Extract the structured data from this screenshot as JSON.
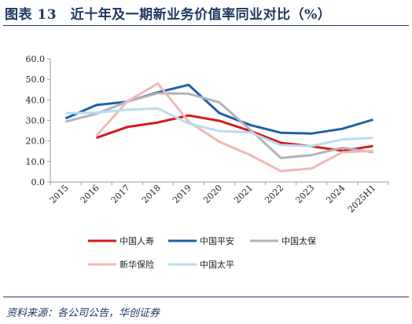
{
  "title": "图表 13　近十年及一期新业务价值率同业对比（%）",
  "source": "资料来源：各公司公告，华创证券",
  "chart_data": {
    "type": "line",
    "title": "",
    "xlabel": "",
    "ylabel": "",
    "ylim": [
      0,
      60
    ],
    "yticks": [
      "0.0",
      "10.0",
      "20.0",
      "30.0",
      "40.0",
      "50.0",
      "60.0"
    ],
    "categories": [
      "2015",
      "2016",
      "2017",
      "2018",
      "2019",
      "2020",
      "2021",
      "2022",
      "2023",
      "2024",
      "2025H1"
    ],
    "grid": false,
    "legend_position": "bottom",
    "series": [
      {
        "name": "中国人寿",
        "color": "#d7191c",
        "values": [
          null,
          21.5,
          26.8,
          29.0,
          32.4,
          29.8,
          24.9,
          19.1,
          17.4,
          15.2,
          17.5
        ]
      },
      {
        "name": "中国平安",
        "color": "#1f5fa8",
        "values": [
          31.0,
          37.5,
          39.1,
          43.7,
          47.3,
          33.6,
          27.8,
          24.0,
          23.6,
          25.9,
          30.4
        ]
      },
      {
        "name": "中国太保",
        "color": "#b4b4b4",
        "values": [
          29.4,
          33.2,
          39.1,
          43.3,
          43.0,
          38.8,
          25.5,
          11.7,
          13.1,
          16.7,
          14.5
        ]
      },
      {
        "name": "新华保险",
        "color": "#f0b7b7",
        "values": [
          null,
          22.5,
          39.2,
          48.0,
          29.4,
          19.6,
          13.2,
          5.3,
          6.6,
          14.5,
          15.2
        ]
      },
      {
        "name": "中国太平",
        "color": "#b7dcef",
        "values": [
          33.5,
          33.8,
          35.2,
          35.8,
          28.5,
          24.8,
          24.2,
          18.0,
          17.5,
          20.7,
          21.5
        ]
      }
    ]
  }
}
